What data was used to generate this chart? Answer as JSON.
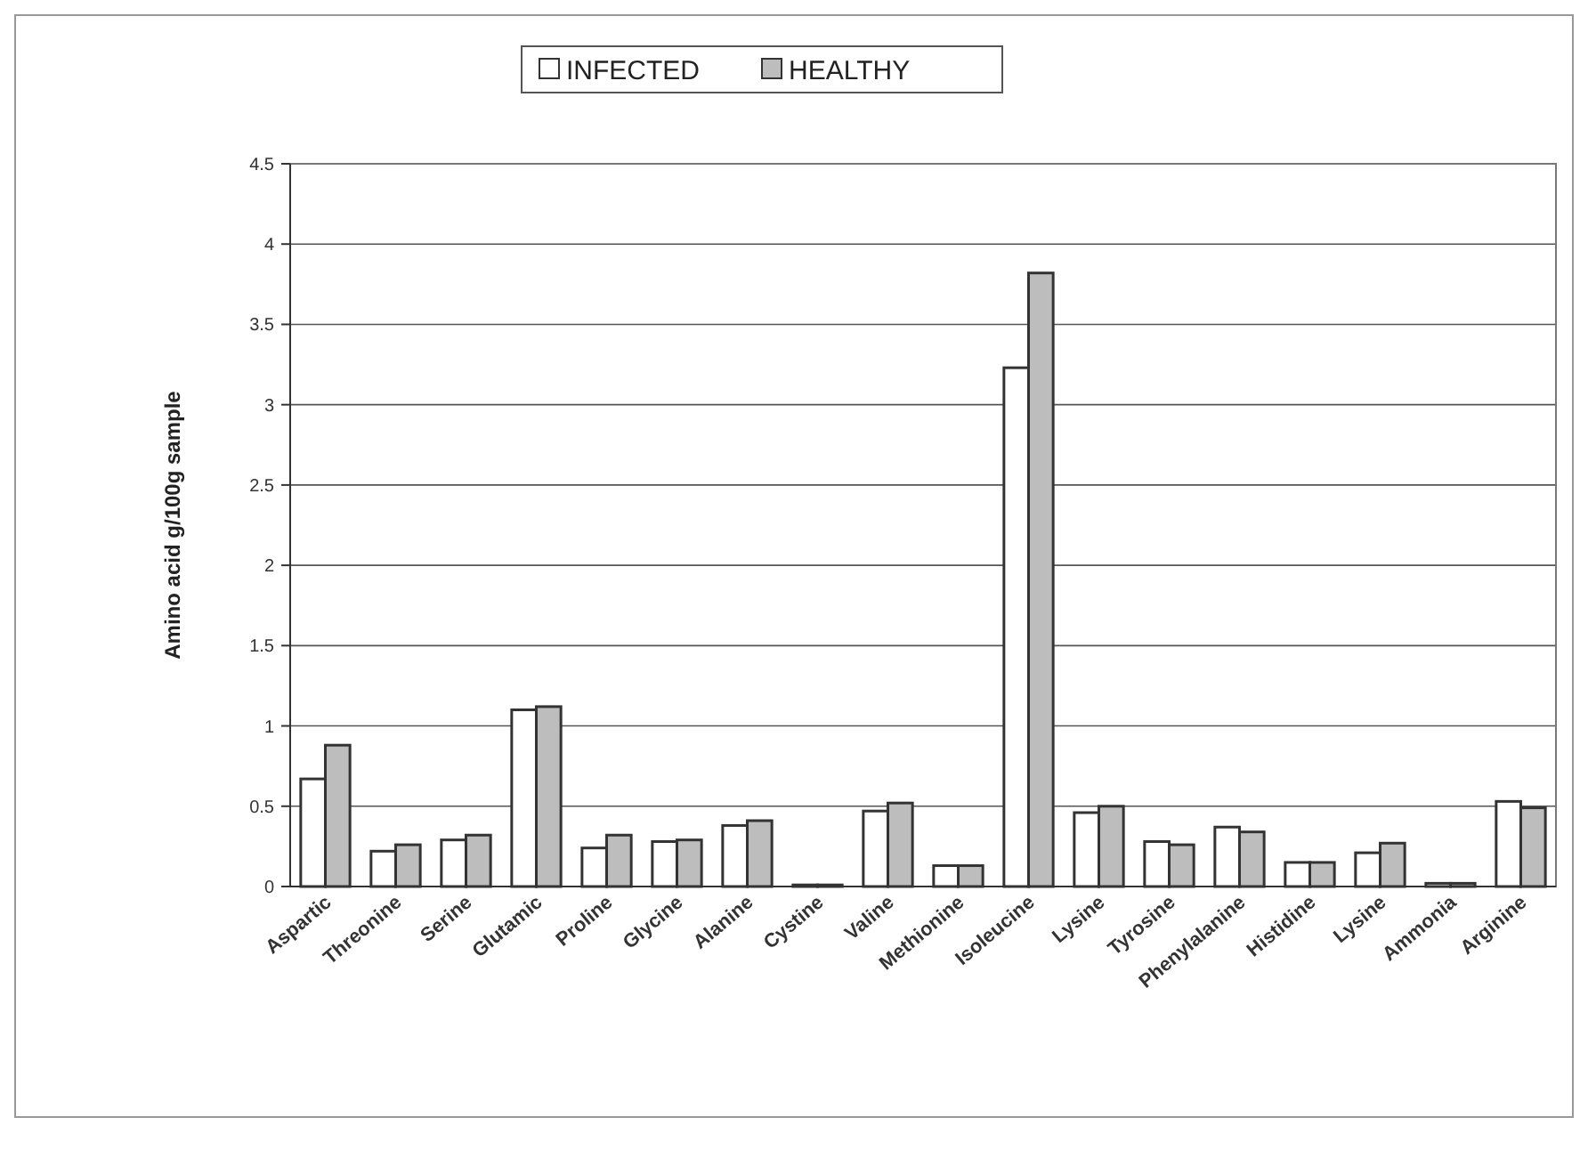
{
  "chart_data": {
    "type": "bar",
    "ylabel": "Amino acid g/100g sample",
    "categories": [
      "Aspartic",
      "Threonine",
      "Serine",
      "Glutamic",
      "Proline",
      "Glycine",
      "Alanine",
      "Cystine",
      "Valine",
      "Methionine",
      "Isoleucine",
      "Lysine",
      "Tyrosine",
      "Phenylalanine",
      "Histidine",
      "Lysine",
      "Ammonia",
      "Arginine"
    ],
    "series": [
      {
        "name": "INFECTED",
        "color": "#ffffff",
        "values": [
          0.67,
          0.22,
          0.29,
          1.1,
          0.24,
          0.28,
          0.38,
          0.01,
          0.47,
          0.13,
          3.23,
          0.46,
          0.28,
          0.37,
          0.15,
          0.21,
          0.02,
          0.53
        ]
      },
      {
        "name": "HEALTHY",
        "color": "#bdbdbd",
        "values": [
          0.88,
          0.26,
          0.32,
          1.12,
          0.32,
          0.29,
          0.41,
          0.01,
          0.52,
          0.13,
          3.82,
          0.5,
          0.26,
          0.34,
          0.15,
          0.27,
          0.02,
          0.49
        ]
      }
    ],
    "ylim": [
      0,
      4.5
    ],
    "yticks": [
      0,
      0.5,
      1,
      1.5,
      2,
      2.5,
      3,
      3.5,
      4,
      4.5
    ],
    "grid": "y",
    "legend": "top"
  }
}
